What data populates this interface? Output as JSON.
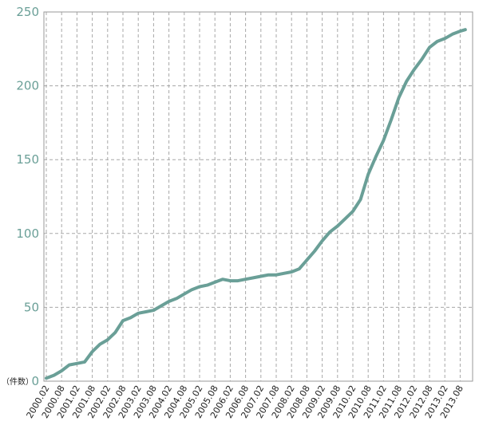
{
  "chart_data": {
    "type": "line",
    "unit_label": "（件数）",
    "series_color": "#6a9f97",
    "grid": true,
    "ylim": [
      0,
      250
    ],
    "yticks": [
      0,
      50,
      100,
      150,
      200,
      250
    ],
    "x_tick_labels": [
      "2000.02",
      "2000.08",
      "2001.02",
      "2001.08",
      "2002.02",
      "2002.08",
      "2003.02",
      "2003.08",
      "2004.02",
      "2004.08",
      "2005.02",
      "2005.08",
      "2006.02",
      "2006.08",
      "2007.02",
      "2007.08",
      "2008.02",
      "2008.08",
      "2009.02",
      "2009.08",
      "2010.02",
      "2010.08",
      "2011.02",
      "2011.08",
      "2012.02",
      "2012.08",
      "2013.02",
      "2013.08"
    ],
    "series": [
      {
        "points": [
          [
            "2000.02",
            2
          ],
          [
            "2000.05",
            4
          ],
          [
            "2000.08",
            7
          ],
          [
            "2000.11",
            11
          ],
          [
            "2001.02",
            12
          ],
          [
            "2001.05",
            13
          ],
          [
            "2001.08",
            20
          ],
          [
            "2001.11",
            25
          ],
          [
            "2002.02",
            28
          ],
          [
            "2002.05",
            33
          ],
          [
            "2002.08",
            41
          ],
          [
            "2002.11",
            43
          ],
          [
            "2003.02",
            46
          ],
          [
            "2003.05",
            47
          ],
          [
            "2003.08",
            48
          ],
          [
            "2003.11",
            51
          ],
          [
            "2004.02",
            54
          ],
          [
            "2004.05",
            56
          ],
          [
            "2004.08",
            59
          ],
          [
            "2004.11",
            62
          ],
          [
            "2005.02",
            64
          ],
          [
            "2005.05",
            65
          ],
          [
            "2005.08",
            67
          ],
          [
            "2005.11",
            69
          ],
          [
            "2006.02",
            68
          ],
          [
            "2006.05",
            68
          ],
          [
            "2006.08",
            69
          ],
          [
            "2006.11",
            70
          ],
          [
            "2007.02",
            71
          ],
          [
            "2007.05",
            72
          ],
          [
            "2007.08",
            72
          ],
          [
            "2007.11",
            73
          ],
          [
            "2008.02",
            74
          ],
          [
            "2008.05",
            76
          ],
          [
            "2008.08",
            82
          ],
          [
            "2008.11",
            88
          ],
          [
            "2009.02",
            95
          ],
          [
            "2009.05",
            101
          ],
          [
            "2009.08",
            105
          ],
          [
            "2009.11",
            110
          ],
          [
            "2010.02",
            115
          ],
          [
            "2010.05",
            123
          ],
          [
            "2010.08",
            140
          ],
          [
            "2010.11",
            152
          ],
          [
            "2011.02",
            163
          ],
          [
            "2011.05",
            177
          ],
          [
            "2011.08",
            192
          ],
          [
            "2011.11",
            203
          ],
          [
            "2012.02",
            211
          ],
          [
            "2012.05",
            218
          ],
          [
            "2012.08",
            226
          ],
          [
            "2012.11",
            230
          ],
          [
            "2013.02",
            232
          ],
          [
            "2013.05",
            235
          ],
          [
            "2013.08",
            237
          ],
          [
            "2013.10",
            238
          ]
        ]
      }
    ]
  }
}
